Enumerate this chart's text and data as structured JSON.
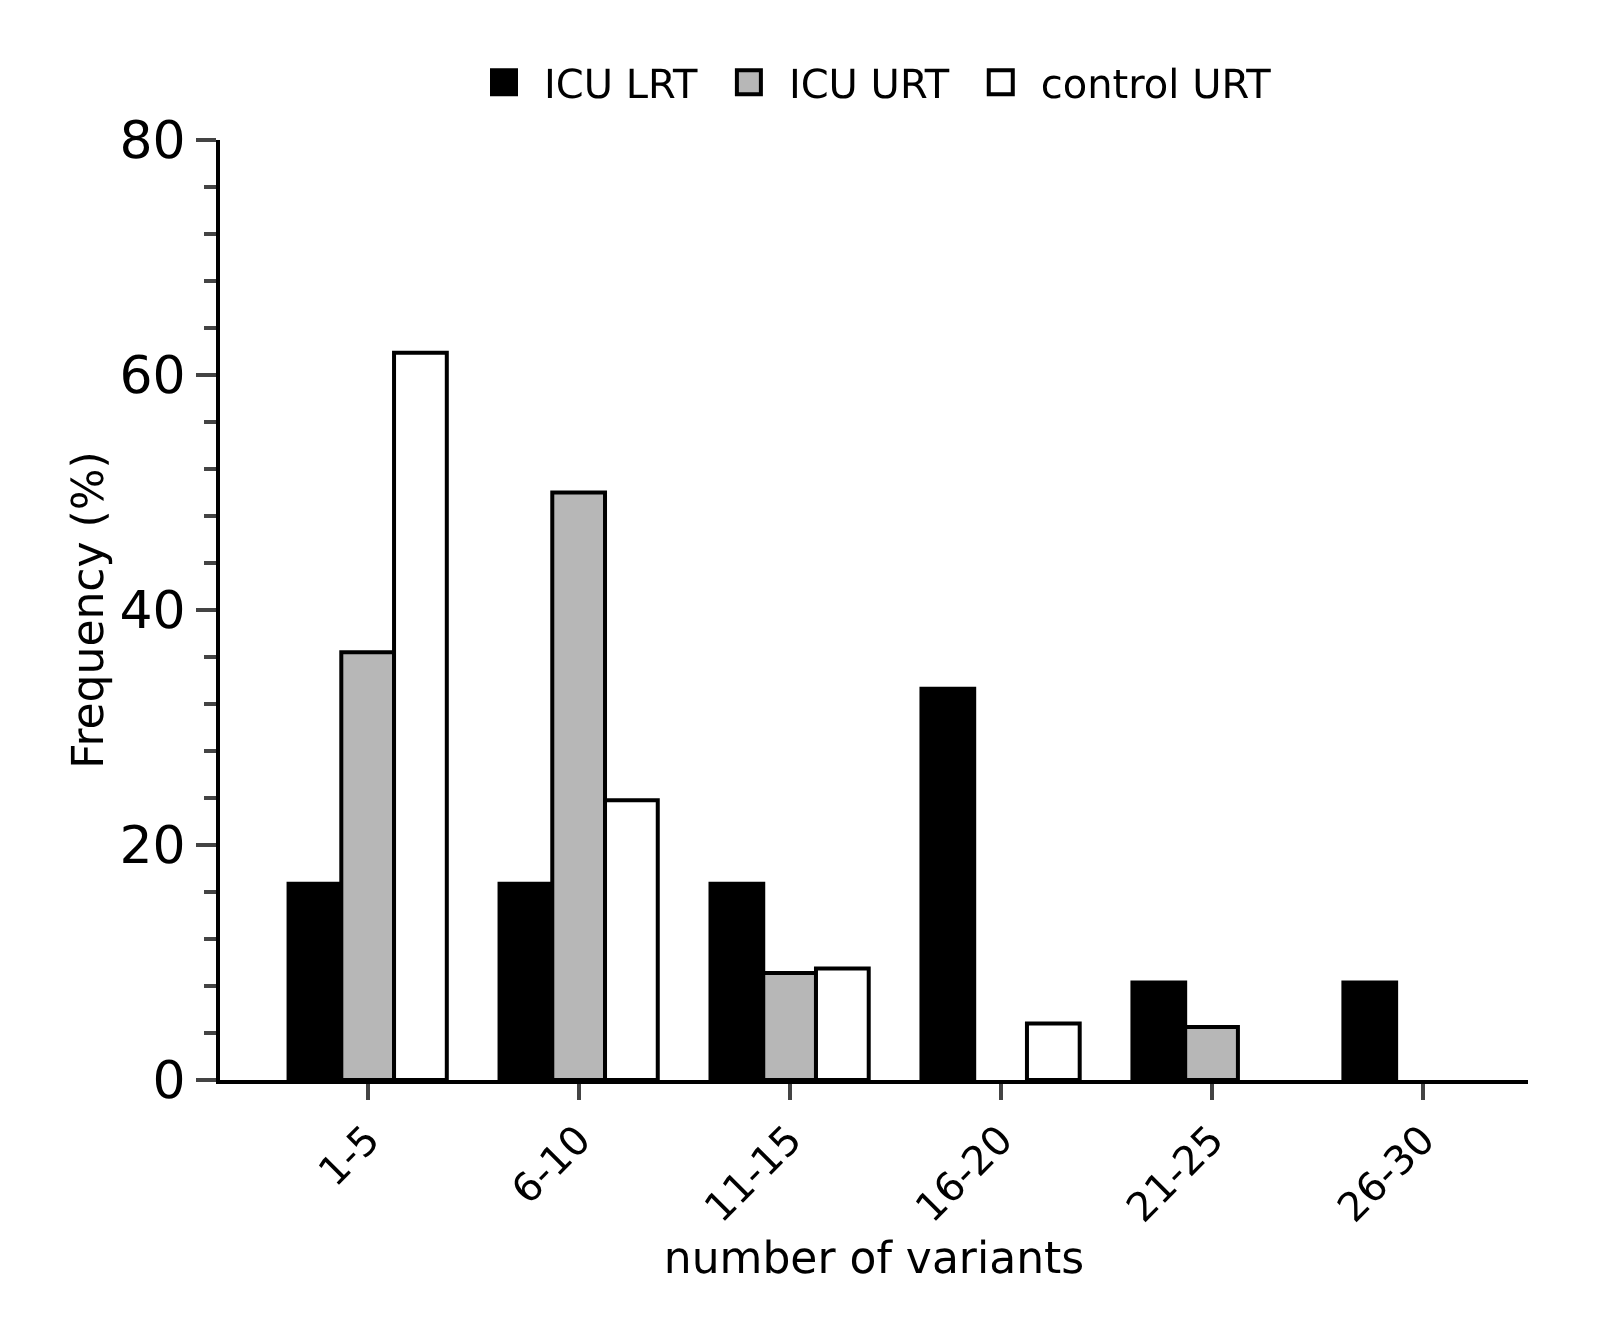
{
  "chart_data": {
    "type": "bar",
    "xlabel": "number of variants",
    "ylabel": "Frequency (%)",
    "categories": [
      "1-5",
      "6-10",
      "11-15",
      "16-20",
      "21-25",
      "26-30"
    ],
    "series": [
      {
        "name": "ICU LRT",
        "color": "#000000",
        "values": [
          16.7,
          16.7,
          16.7,
          33.3,
          8.3,
          8.3
        ]
      },
      {
        "name": "ICU URT",
        "color": "#b7b7b7",
        "values": [
          36.4,
          50.0,
          9.1,
          null,
          4.5,
          null
        ]
      },
      {
        "name": "control URT",
        "color": "#ffffff",
        "values": [
          61.9,
          23.8,
          9.5,
          4.8,
          null,
          null
        ]
      }
    ],
    "ylim": [
      0,
      80
    ],
    "yticks": [
      0,
      20,
      40,
      60,
      80
    ],
    "grid": false,
    "legend": "top"
  }
}
